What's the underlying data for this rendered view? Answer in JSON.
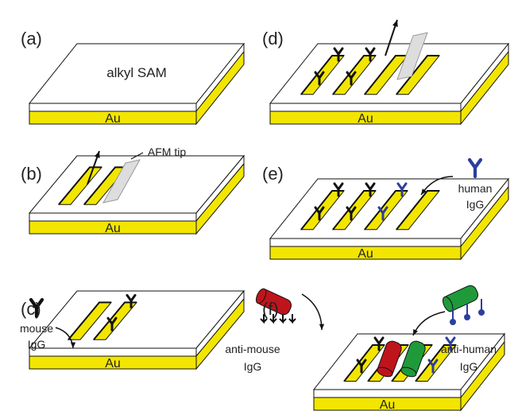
{
  "panels": [
    {
      "label": "(a)",
      "substrate": "Au",
      "annotation_lines": [
        "alkyl SAM"
      ]
    },
    {
      "label": "(b)",
      "substrate": "Au",
      "annotation_lines": [
        "AFM tip"
      ]
    },
    {
      "label": "(c)",
      "substrate": "Au",
      "annotation_lines": [
        "mouse",
        "IgG"
      ]
    },
    {
      "label": "(d)",
      "substrate": "Au"
    },
    {
      "label": "(e)",
      "substrate": "Au",
      "annotation_lines": [
        "human",
        "IgG"
      ]
    },
    {
      "label": "(f)",
      "substrate": "Au",
      "annotations": [
        {
          "lines": [
            "anti-mouse",
            "IgG"
          ]
        },
        {
          "lines": [
            "anti-human",
            "IgG"
          ]
        }
      ]
    }
  ]
}
